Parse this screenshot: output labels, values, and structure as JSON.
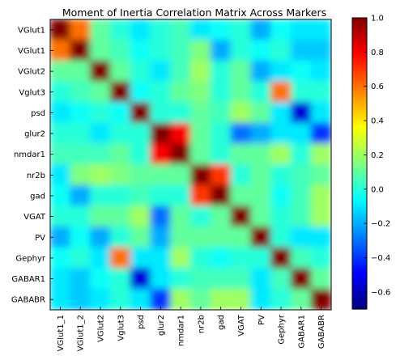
{
  "chart_data": {
    "type": "heatmap",
    "title": "Moment of Inertia Correlation Matrix Across Markers",
    "row_labels": [
      "VGlut1",
      "VGlut1",
      "VGlut2",
      "Vglut3",
      "psd",
      "glur2",
      "nmdar1",
      "nr2b",
      "gad",
      "VGAT",
      "PV",
      "Gephyr",
      "GABAR1",
      "GABABR"
    ],
    "col_labels": [
      "VGlut1_1",
      "VGlut1_2",
      "VGlut2",
      "Vglut3",
      "psd",
      "glur2",
      "nmdar1",
      "nr2b",
      "gad",
      "VGAT",
      "PV",
      "Gephyr",
      "GABAR1",
      "GABABR"
    ],
    "colorbar": {
      "min": -0.7,
      "max": 1.0,
      "ticks": [
        "1.0",
        "0.8",
        "0.6",
        "0.4",
        "0.2",
        "0.0",
        "−0.2",
        "−0.4",
        "−0.6"
      ],
      "tick_values": [
        1.0,
        0.8,
        0.6,
        0.4,
        0.2,
        0.0,
        -0.2,
        -0.4,
        -0.6
      ],
      "colormap": "jet"
    },
    "values": [
      [
        1.0,
        0.6,
        0.1,
        0.0,
        -0.1,
        0.0,
        0.05,
        -0.1,
        -0.05,
        0.0,
        -0.2,
        -0.05,
        -0.1,
        -0.1
      ],
      [
        0.6,
        1.0,
        0.1,
        0.05,
        -0.05,
        0.0,
        0.05,
        0.15,
        -0.2,
        0.0,
        -0.05,
        0.0,
        -0.15,
        -0.15
      ],
      [
        0.1,
        0.1,
        1.0,
        0.1,
        0.0,
        -0.1,
        0.05,
        0.2,
        0.0,
        0.1,
        -0.2,
        -0.1,
        -0.05,
        -0.1
      ],
      [
        0.0,
        0.05,
        0.1,
        1.0,
        -0.05,
        0.0,
        0.1,
        0.15,
        0.0,
        0.1,
        0.0,
        0.6,
        0.0,
        0.0
      ],
      [
        -0.1,
        -0.05,
        0.0,
        -0.05,
        1.0,
        0.0,
        0.0,
        0.1,
        0.05,
        0.2,
        0.1,
        -0.1,
        -0.55,
        -0.1
      ],
      [
        0.0,
        0.0,
        -0.1,
        0.0,
        0.0,
        1.0,
        0.8,
        0.1,
        0.0,
        -0.3,
        -0.2,
        -0.1,
        -0.1,
        -0.4
      ],
      [
        0.05,
        0.05,
        0.05,
        0.1,
        0.0,
        0.8,
        1.0,
        0.1,
        0.0,
        0.1,
        0.1,
        0.2,
        0.0,
        0.2
      ],
      [
        -0.1,
        0.15,
        0.2,
        0.15,
        0.1,
        0.1,
        0.1,
        1.0,
        0.7,
        0.0,
        0.1,
        0.0,
        0.05,
        0.1
      ],
      [
        -0.05,
        -0.2,
        0.0,
        0.0,
        0.05,
        0.0,
        0.0,
        0.7,
        1.0,
        0.1,
        0.1,
        -0.05,
        0.05,
        0.2
      ],
      [
        0.0,
        0.0,
        0.1,
        0.1,
        0.2,
        -0.3,
        0.1,
        0.0,
        0.1,
        1.0,
        0.1,
        0.0,
        0.05,
        0.2
      ],
      [
        -0.2,
        -0.05,
        -0.2,
        0.0,
        0.1,
        -0.2,
        0.1,
        0.1,
        0.1,
        0.1,
        1.0,
        0.0,
        -0.1,
        -0.1
      ],
      [
        -0.05,
        0.0,
        -0.1,
        0.6,
        -0.1,
        -0.1,
        0.2,
        0.0,
        -0.05,
        0.0,
        0.0,
        1.0,
        0.05,
        0.0
      ],
      [
        -0.1,
        -0.15,
        -0.05,
        0.0,
        -0.55,
        -0.1,
        0.0,
        0.05,
        0.05,
        0.05,
        -0.1,
        0.05,
        1.0,
        0.1
      ],
      [
        -0.1,
        -0.15,
        -0.1,
        0.0,
        -0.1,
        -0.4,
        0.2,
        0.1,
        0.2,
        0.2,
        -0.1,
        0.0,
        0.1,
        1.0
      ]
    ]
  }
}
